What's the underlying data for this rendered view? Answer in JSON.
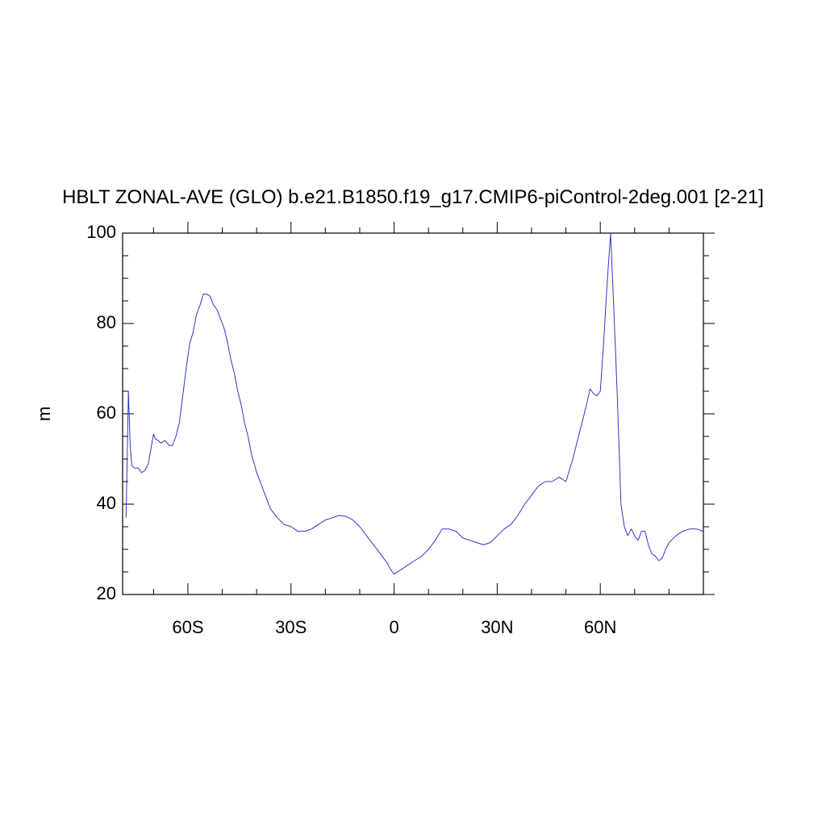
{
  "chart_data": {
    "type": "line",
    "title": "HBLT ZONAL-AVE (GLO) b.e21.B1850.f19_g17.CMIP6-piControl-2deg.001 [2-21]",
    "xlabel": "",
    "ylabel": "m",
    "xlim": [
      -79,
      90
    ],
    "ylim": [
      20,
      100
    ],
    "grid": false,
    "line_color": "#3333cc",
    "x_ticks": [
      {
        "value": -60,
        "label": "60S"
      },
      {
        "value": -30,
        "label": "30S"
      },
      {
        "value": 0,
        "label": "0"
      },
      {
        "value": 30,
        "label": "30N"
      },
      {
        "value": 60,
        "label": "60N"
      }
    ],
    "x_minor_ticks": [
      -70,
      -50,
      -40,
      -20,
      -10,
      10,
      20,
      40,
      50,
      70,
      80
    ],
    "y_ticks": [
      {
        "value": 20,
        "label": "20"
      },
      {
        "value": 40,
        "label": "40"
      },
      {
        "value": 60,
        "label": "60"
      },
      {
        "value": 80,
        "label": "80"
      },
      {
        "value": 100,
        "label": "100"
      }
    ],
    "y_minor_ticks": [
      25,
      30,
      35,
      45,
      50,
      55,
      65,
      70,
      75,
      85,
      90,
      95
    ],
    "series": [
      {
        "x": [
          -78,
          -77.3,
          -76.8,
          -76.3,
          -75.5,
          -74.5,
          -73.5,
          -72.5,
          -71.5,
          -70.8,
          -70,
          -69.5,
          -68.5,
          -67.8,
          -67,
          -66.5,
          -65.5,
          -64.5,
          -63.5,
          -62.5,
          -61.5,
          -60.5,
          -59.5,
          -58.5,
          -57.5,
          -56.5,
          -55.5,
          -54.5,
          -53.5,
          -52.5,
          -51.5,
          -50.5,
          -49.5,
          -48.5,
          -47.5,
          -46.5,
          -45.5,
          -44.5,
          -43.5,
          -42.5,
          -41.5,
          -40,
          -38,
          -36,
          -34,
          -32,
          -30,
          -28,
          -26,
          -24,
          -22,
          -20,
          -18,
          -16,
          -14,
          -12,
          -10,
          -8,
          -6,
          -4,
          -2,
          -1,
          0,
          1,
          2,
          4,
          6,
          8,
          10,
          12,
          14,
          16,
          18,
          20,
          22,
          24,
          26,
          28,
          30,
          32,
          34,
          36,
          38,
          40,
          42,
          44,
          46,
          48,
          50,
          52,
          54,
          55,
          56,
          57,
          58,
          59,
          60,
          61,
          62,
          63,
          64,
          65,
          66,
          67,
          68,
          69,
          70,
          71,
          72,
          73,
          74,
          75,
          76,
          77,
          78,
          79,
          80,
          82,
          84,
          86,
          88,
          90
        ],
        "y": [
          37,
          65,
          53,
          48.5,
          48,
          48,
          47,
          47.5,
          49,
          52,
          55.5,
          54.5,
          54,
          53.5,
          54,
          54,
          53,
          53,
          55,
          58,
          64,
          70,
          75.5,
          78,
          82,
          84,
          86.5,
          86.5,
          86,
          84,
          83,
          81,
          79,
          76,
          72,
          69,
          65,
          62,
          58,
          55,
          51,
          47,
          43,
          39,
          37,
          35.5,
          35,
          34,
          34,
          34.5,
          35.5,
          36.5,
          37,
          37.5,
          37.3,
          36.5,
          35,
          33,
          31,
          29,
          27,
          25.5,
          24.5,
          25,
          25.5,
          26.5,
          27.5,
          28.5,
          30,
          32,
          34.5,
          34.5,
          34,
          32.5,
          32,
          31.5,
          31,
          31.5,
          33,
          34.5,
          35.5,
          37.5,
          40,
          42,
          44,
          45,
          45,
          46,
          45,
          50,
          56,
          59,
          62,
          65.5,
          64.5,
          64,
          65,
          76,
          89,
          100,
          82,
          63,
          40,
          35,
          33,
          34.5,
          33,
          32,
          34,
          34,
          31,
          29,
          28.5,
          27.5,
          28,
          30,
          31.5,
          33,
          34,
          34.5,
          34.5,
          34
        ]
      }
    ]
  }
}
